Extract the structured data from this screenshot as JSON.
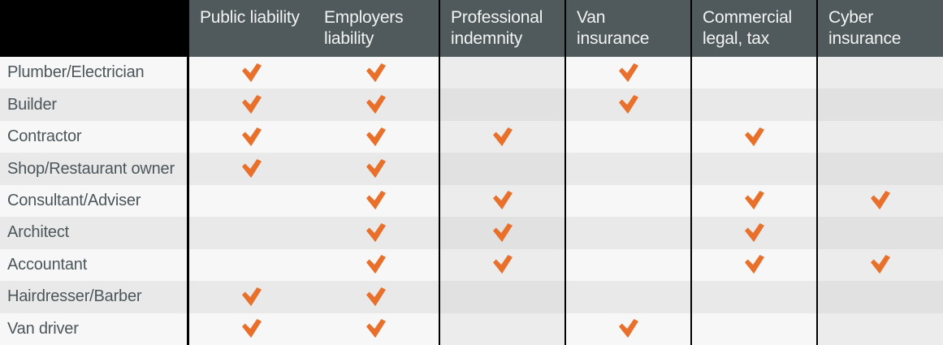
{
  "chart_data": {
    "type": "table",
    "columns": [
      "Public liability",
      "Employers liability",
      "Professional indemnity",
      "Van insurance",
      "Commercial legal, tax",
      "Cyber insurance"
    ],
    "rows": [
      "Plumber/Electrician",
      "Builder",
      "Contractor",
      "Shop/Restaurant owner",
      "Consultant/Adviser",
      "Architect",
      "Accountant",
      "Hairdresser/Barber",
      "Van driver"
    ],
    "checkmarks": [
      [
        1,
        1,
        0,
        1,
        0,
        0
      ],
      [
        1,
        1,
        0,
        1,
        0,
        0
      ],
      [
        1,
        1,
        1,
        0,
        1,
        0
      ],
      [
        1,
        1,
        0,
        0,
        0,
        0
      ],
      [
        0,
        1,
        1,
        0,
        1,
        1
      ],
      [
        0,
        1,
        1,
        0,
        1,
        0
      ],
      [
        0,
        1,
        1,
        0,
        1,
        1
      ],
      [
        1,
        1,
        0,
        0,
        0,
        0
      ],
      [
        1,
        1,
        0,
        1,
        0,
        0
      ]
    ],
    "cell_symbol": "check-icon",
    "layout": "occupation rows x insurance-type columns, orange check = applicable"
  },
  "header": {
    "column_labels_display": [
      "Public liability",
      "Employers\nliability",
      "Professional\nindemnity",
      "Van\ninsurance",
      "Commercial\nlegal, tax",
      "Cyber\ninsurance"
    ]
  },
  "colors": {
    "accent_orange": "#e8702a",
    "header_bg": "#505a5c",
    "header_text": "#f2f3f3",
    "corner_bg": "#000000",
    "divider": "#000000",
    "row_light": "#f7f7f7",
    "row_dark": "#e9e9e9",
    "row_light_tinted": "#ececec",
    "row_dark_tinted": "#e1e1e1",
    "label_text": "#4c565a"
  }
}
